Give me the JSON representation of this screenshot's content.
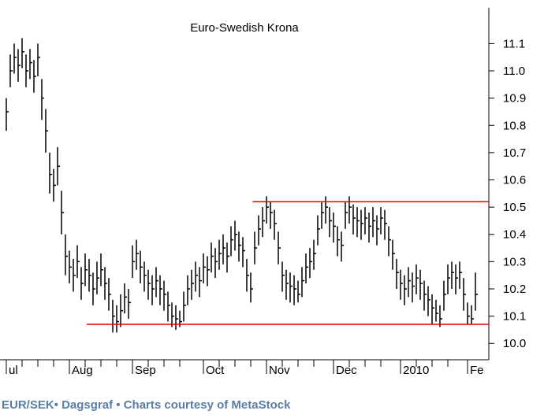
{
  "chart_data": {
    "type": "ohlc",
    "title": "Euro-Swedish Krona",
    "color": "#000000",
    "high": [
      10.9,
      11.06,
      11.1,
      11.08,
      11.12,
      11.06,
      11.08,
      11.04,
      11.1,
      10.97,
      10.86,
      10.7,
      10.64,
      10.72,
      10.56,
      10.4,
      10.34,
      10.31,
      10.36,
      10.28,
      10.33,
      10.31,
      10.26,
      10.3,
      10.33,
      10.28,
      10.24,
      10.16,
      10.14,
      10.18,
      10.22,
      10.2,
      10.36,
      10.38,
      10.34,
      10.3,
      10.27,
      10.25,
      10.28,
      10.25,
      10.23,
      10.19,
      10.15,
      10.14,
      10.12,
      10.19,
      10.25,
      10.27,
      10.3,
      10.28,
      10.33,
      10.32,
      10.37,
      10.35,
      10.38,
      10.4,
      10.37,
      10.43,
      10.45,
      10.41,
      10.39,
      10.31,
      10.26,
      10.41,
      10.47,
      10.5,
      10.54,
      10.52,
      10.49,
      10.41,
      10.3,
      10.27,
      10.26,
      10.25,
      10.23,
      10.28,
      10.33,
      10.35,
      10.38,
      10.47,
      10.52,
      10.54,
      10.5,
      10.48,
      10.43,
      10.41,
      10.52,
      10.54,
      10.51,
      10.5,
      10.49,
      10.5,
      10.48,
      10.5,
      10.47,
      10.5,
      10.49,
      10.43,
      10.38,
      10.31,
      10.27,
      10.25,
      10.28,
      10.26,
      10.29,
      10.27,
      10.23,
      10.21,
      10.18,
      10.16,
      10.14,
      10.23,
      10.29,
      10.3,
      10.29,
      10.3,
      10.24,
      10.15,
      10.14,
      10.26
    ],
    "low": [
      10.78,
      10.94,
      10.99,
      10.96,
      11.01,
      10.94,
      10.97,
      10.92,
      10.98,
      10.82,
      10.7,
      10.55,
      10.52,
      10.58,
      10.4,
      10.25,
      10.22,
      10.19,
      10.24,
      10.16,
      10.21,
      10.19,
      10.14,
      10.18,
      10.21,
      10.16,
      10.12,
      10.04,
      10.04,
      10.06,
      10.11,
      10.09,
      10.24,
      10.27,
      10.22,
      10.19,
      10.16,
      10.14,
      10.17,
      10.14,
      10.12,
      10.08,
      10.06,
      10.05,
      10.06,
      10.08,
      10.14,
      10.16,
      10.19,
      10.17,
      10.22,
      10.21,
      10.26,
      10.24,
      10.27,
      10.29,
      10.26,
      10.32,
      10.34,
      10.3,
      10.28,
      10.19,
      10.15,
      10.29,
      10.36,
      10.39,
      10.44,
      10.42,
      10.38,
      10.29,
      10.19,
      10.16,
      10.15,
      10.14,
      10.15,
      10.17,
      10.22,
      10.24,
      10.27,
      10.36,
      10.42,
      10.44,
      10.39,
      10.37,
      10.32,
      10.3,
      10.42,
      10.44,
      10.4,
      10.39,
      10.38,
      10.4,
      10.37,
      10.39,
      10.36,
      10.4,
      10.38,
      10.32,
      10.27,
      10.2,
      10.16,
      10.14,
      10.17,
      10.15,
      10.18,
      10.16,
      10.12,
      10.1,
      10.07,
      10.08,
      10.06,
      10.12,
      10.18,
      10.2,
      10.18,
      10.2,
      10.12,
      10.07,
      10.07,
      10.12
    ],
    "close": [
      10.85,
      11.0,
      11.05,
      11.02,
      11.07,
      11.0,
      11.03,
      10.98,
      11.05,
      10.9,
      10.78,
      10.62,
      10.58,
      10.65,
      10.48,
      10.32,
      10.28,
      10.25,
      10.3,
      10.22,
      10.27,
      10.25,
      10.2,
      10.24,
      10.27,
      10.22,
      10.18,
      10.1,
      10.08,
      10.12,
      10.17,
      10.15,
      10.3,
      10.33,
      10.28,
      10.25,
      10.22,
      10.2,
      10.23,
      10.2,
      10.18,
      10.14,
      10.1,
      10.09,
      10.08,
      10.14,
      10.2,
      10.22,
      10.25,
      10.23,
      10.28,
      10.27,
      10.32,
      10.3,
      10.33,
      10.35,
      10.32,
      10.38,
      10.4,
      10.36,
      10.34,
      10.25,
      10.2,
      10.35,
      10.42,
      10.45,
      10.5,
      10.48,
      10.44,
      10.35,
      10.25,
      10.22,
      10.21,
      10.2,
      10.18,
      10.23,
      10.28,
      10.3,
      10.33,
      10.42,
      10.48,
      10.5,
      10.45,
      10.43,
      10.38,
      10.36,
      10.48,
      10.5,
      10.46,
      10.45,
      10.44,
      10.46,
      10.43,
      10.45,
      10.42,
      10.46,
      10.44,
      10.38,
      10.33,
      10.26,
      10.22,
      10.2,
      10.23,
      10.21,
      10.24,
      10.22,
      10.18,
      10.16,
      10.13,
      10.11,
      10.09,
      10.18,
      10.24,
      10.26,
      10.24,
      10.26,
      10.18,
      10.1,
      10.09,
      10.18
    ],
    "xlim": [
      -1.6,
      122.4
    ],
    "xticks": [
      {
        "value": 0,
        "label": "ul"
      },
      {
        "value": 16,
        "label": "Aug"
      },
      {
        "value": 32,
        "label": "Sep"
      },
      {
        "value": 50,
        "label": "Oct"
      },
      {
        "value": 66,
        "label": "Nov"
      },
      {
        "value": 83,
        "label": "Dec"
      },
      {
        "value": 100,
        "label": "2010"
      },
      {
        "value": 117,
        "label": "Fe"
      }
    ],
    "xminorticks": [
      4,
      8,
      12,
      20,
      24,
      28,
      36,
      40,
      44,
      54,
      58,
      62,
      70,
      74,
      78,
      87,
      91,
      95,
      104,
      108,
      112
    ],
    "ylim": [
      9.94,
      11.26
    ],
    "yticks": [
      {
        "value": 10,
        "label": "10.0"
      },
      10.1,
      10.2,
      10.3,
      10.4,
      10.5,
      10.6,
      10.7,
      10.8,
      10.9,
      {
        "value": 11,
        "label": "11.0"
      },
      11.1
    ],
    "lines": [
      {
        "y": 10.52,
        "from": 62.5,
        "color": "#e00000"
      },
      {
        "y": 10.07,
        "from": 20.4,
        "color": "#e00000"
      }
    ],
    "caption": "EUR/SEK• Dagsgraf • Charts courtesy of MetaStock"
  }
}
